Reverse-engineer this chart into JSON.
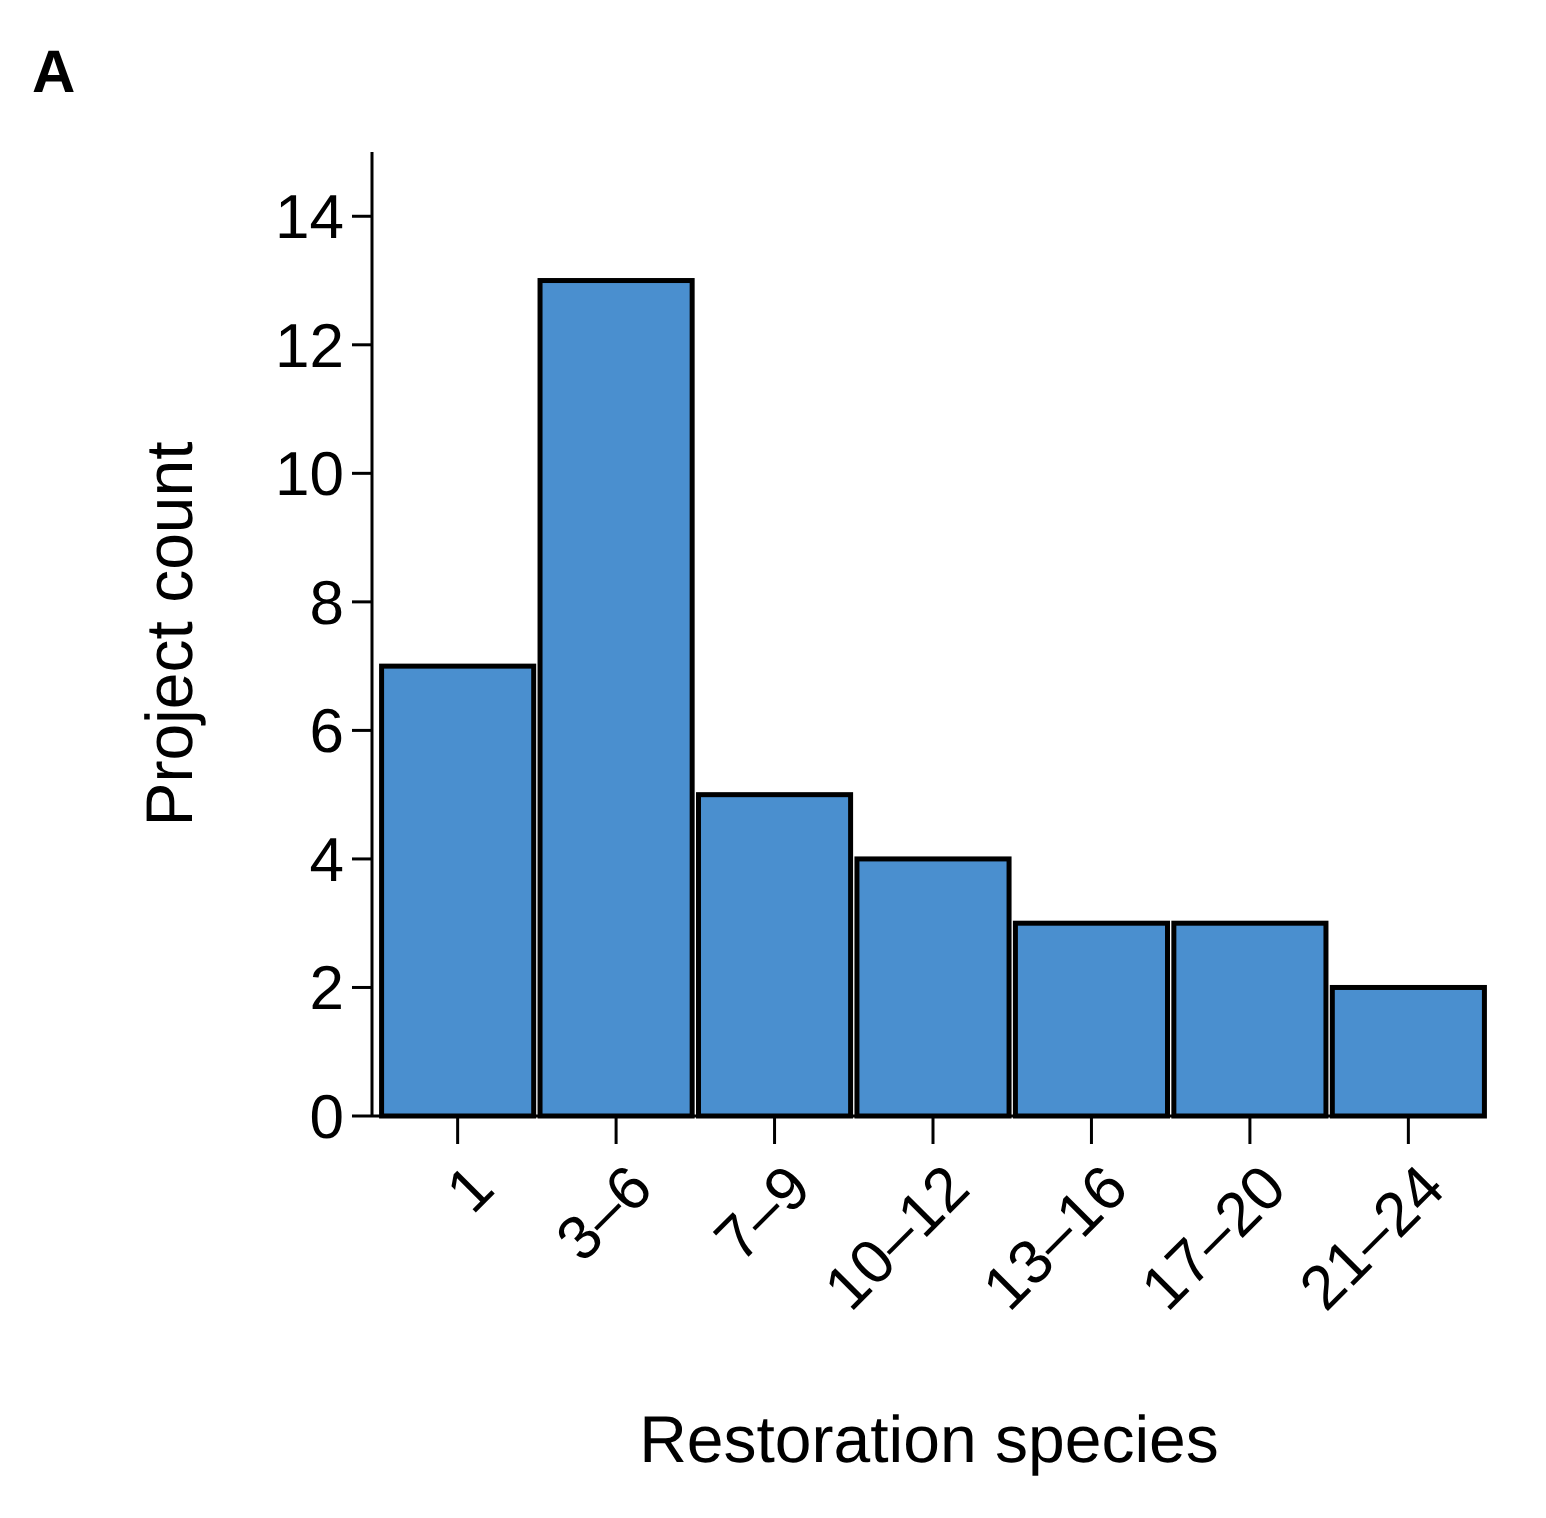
{
  "chart_data": {
    "type": "bar",
    "xlabel": "Restoration species",
    "ylabel": "Project count",
    "annotations": [
      "A"
    ],
    "categories": [
      "1",
      "3–6",
      "7–9",
      "10–12",
      "13–16",
      "17–20",
      "21–24"
    ],
    "values": [
      7,
      13,
      5,
      4,
      3,
      3,
      2
    ],
    "color": "#4a8fcf",
    "ylim": [
      0,
      15
    ],
    "yticks": [
      0,
      2,
      4,
      6,
      8,
      10,
      12,
      14
    ],
    "grid": false
  }
}
